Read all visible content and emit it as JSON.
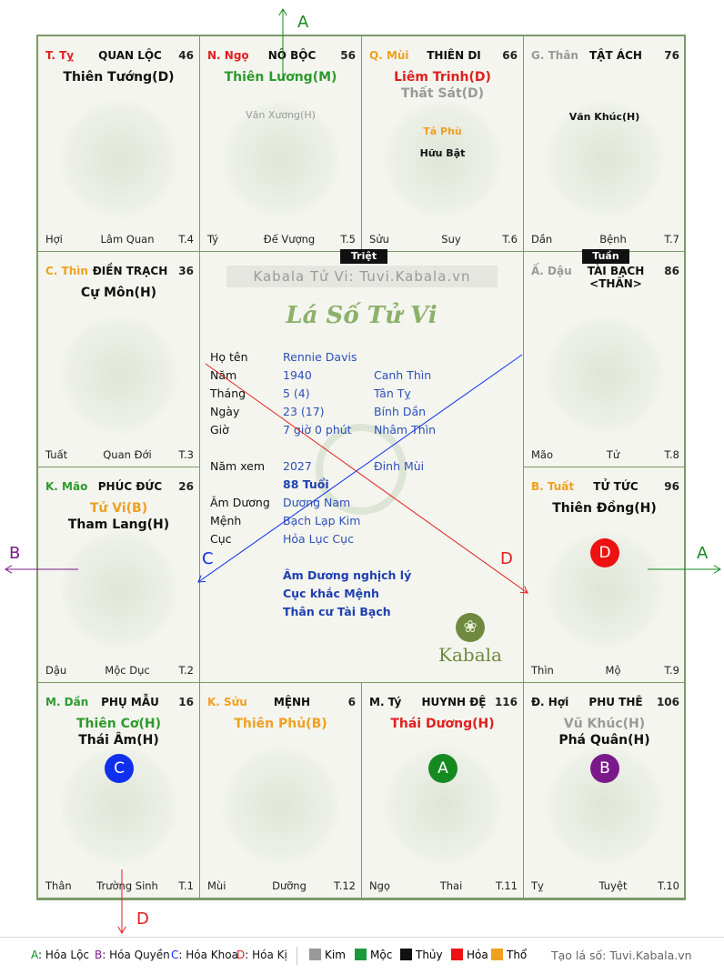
{
  "palaces": [
    {
      "can": "T. Tỵ",
      "can_color": "#e02020",
      "name": "QUAN LỘC",
      "num": "46",
      "main": [
        {
          "t": "Thiên Tướng(D)",
          "c": "#111111"
        }
      ],
      "minor": [],
      "ls": "Hợi",
      "tr": "Lâm Quan",
      "t": "T.4"
    },
    {
      "can": "N. Ngọ",
      "can_color": "#e02020",
      "name": "NÔ BỘC",
      "num": "56",
      "main": [
        {
          "t": "Thiên Lương(M)",
          "c": "#2e9a2e"
        }
      ],
      "minor": [
        {
          "t": "Văn Xương(H)",
          "c": "#9a9a9a",
          "b": false
        }
      ],
      "ls": "Tý",
      "tr": "Đế Vượng",
      "t": "T.5"
    },
    {
      "can": "Q. Mùi",
      "can_color": "#f0a020",
      "name": "THIÊN DI",
      "num": "66",
      "main": [
        {
          "t": "Liêm Trinh(D)",
          "c": "#e02020"
        },
        {
          "t": "Thất Sát(D)",
          "c": "#9a9a9a"
        }
      ],
      "minor": [
        {
          "t": "Tả Phù",
          "c": "#f0a020",
          "b": true
        },
        {
          "t": "Hữu Bật",
          "c": "#111111",
          "b": true
        }
      ],
      "ls": "Sửu",
      "tr": "Suy",
      "t": "T.6"
    },
    {
      "can": "G. Thân",
      "can_color": "#9a9a9a",
      "name": "TẬT ÁCH",
      "num": "76",
      "main": [],
      "minor": [
        {
          "t": "Văn Khúc(H)",
          "c": "#111111",
          "b": true
        }
      ],
      "ls": "Dần",
      "tr": "Bệnh",
      "t": "T.7"
    },
    {
      "can": "Ấ. Dậu",
      "can_color": "#9a9a9a",
      "name": "TÀI BẠCH <THÂN>",
      "num": "86",
      "main": [],
      "minor": [],
      "ls": "Mão",
      "tr": "Tử",
      "t": "T.8"
    },
    {
      "can": "B. Tuất",
      "can_color": "#f0a020",
      "name": "TỬ TỨC",
      "num": "96",
      "main": [
        {
          "t": "Thiên Đồng(H)",
          "c": "#111111"
        }
      ],
      "minor": [],
      "ls": "Thìn",
      "tr": "Mộ",
      "t": "T.9",
      "hoa": {
        "l": "D",
        "c": "#ee1111"
      }
    },
    {
      "can": "Đ. Hợi",
      "can_color": "#111111",
      "name": "PHU THÊ",
      "num": "106",
      "main": [
        {
          "t": "Vũ Khúc(H)",
          "c": "#9a9a9a"
        },
        {
          "t": "Phá Quân(H)",
          "c": "#111111"
        }
      ],
      "minor": [],
      "ls": "Tỵ",
      "tr": "Tuyệt",
      "t": "T.10",
      "hoa": {
        "l": "B",
        "c": "#7a1a8a"
      }
    },
    {
      "can": "M. Tý",
      "can_color": "#111111",
      "name": "HUYNH ĐỆ",
      "num": "116",
      "main": [
        {
          "t": "Thái Dương(H)",
          "c": "#e02020"
        }
      ],
      "minor": [],
      "ls": "Ngọ",
      "tr": "Thai",
      "t": "T.11",
      "hoa": {
        "l": "A",
        "c": "#158a20"
      }
    },
    {
      "can": "K. Sửu",
      "can_color": "#f0a020",
      "name": "MỆNH",
      "num": "6",
      "main": [
        {
          "t": "Thiên Phủ(B)",
          "c": "#f0a020"
        }
      ],
      "minor": [],
      "ls": "Mùi",
      "tr": "Dưỡng",
      "t": "T.12"
    },
    {
      "can": "M. Dần",
      "can_color": "#2e9a2e",
      "name": "PHỤ MẪU",
      "num": "16",
      "main": [
        {
          "t": "Thiên Cơ(H)",
          "c": "#2e9a2e"
        },
        {
          "t": "Thái Âm(H)",
          "c": "#111111"
        }
      ],
      "minor": [],
      "ls": "Thân",
      "tr": "Trường Sinh",
      "t": "T.1",
      "hoa": {
        "l": "C",
        "c": "#1030ee"
      }
    },
    {
      "can": "K. Mão",
      "can_color": "#2e9a2e",
      "name": "PHÚC ĐỨC",
      "num": "26",
      "main": [
        {
          "t": "Tử Vi(B)",
          "c": "#f0a020"
        },
        {
          "t": "Tham Lang(H)",
          "c": "#111111"
        }
      ],
      "minor": [],
      "ls": "Dậu",
      "tr": "Mộc Dục",
      "t": "T.2"
    },
    {
      "can": "C. Thìn",
      "can_color": "#f0a020",
      "name": "ĐIỀN TRẠCH",
      "num": "36",
      "main": [
        {
          "t": "Cự Môn(H)",
          "c": "#111111"
        }
      ],
      "minor": [],
      "ls": "Tuất",
      "tr": "Quan Đới",
      "t": "T.3"
    }
  ],
  "tags": {
    "triet": "Triệt",
    "tuan": "Tuần"
  },
  "center": {
    "site": "Kabala Tử Vi: Tuvi.Kabala.vn",
    "title": "Lá Số Tử Vi",
    "rows": [
      {
        "lab": "Họ tên",
        "v1": "Rennie Davis",
        "v2": ""
      },
      {
        "lab": "Năm",
        "v1": "1940",
        "v2": "Canh Thìn"
      },
      {
        "lab": "Tháng",
        "v1": "5  (4)",
        "v2": "Tân Tỵ"
      },
      {
        "lab": "Ngày",
        "v1": "23  (17)",
        "v2": "Bính Dần"
      },
      {
        "lab": "Giờ",
        "v1": "7 giờ 0 phút",
        "v2": "Nhâm Thìn"
      },
      {
        "lab": "Năm xem",
        "v1": "2027",
        "v2": "Đinh Mùi"
      },
      {
        "lab": "Âm Dương",
        "v1": "Dương Nam",
        "v2": ""
      },
      {
        "lab": "Mệnh",
        "v1": "Bạch Lạp Kim",
        "v2": ""
      },
      {
        "lab": "Cục",
        "v1": "Hỏa Lục Cục",
        "v2": ""
      }
    ],
    "age": "88 Tuổi",
    "notes": [
      "Âm Dương nghịch lý",
      "Cục khắc Mệnh",
      "Thân cư Tài Bạch"
    ],
    "brand": "Kabala"
  },
  "arrow_labels": {
    "top": "A",
    "right": "A",
    "left": "B",
    "bottom": "D",
    "mid_c": "C",
    "mid_d": "D"
  },
  "legend": {
    "hoa": [
      {
        "t": "A: Hóa Lộc",
        "c": "#158a20"
      },
      {
        "t": "B: Hóa Quyền",
        "c": "#7a1a8a"
      },
      {
        "t": "C: Hóa Khoa",
        "c": "#1030ee"
      },
      {
        "t": "D: Hóa Kị",
        "c": "#e02020"
      }
    ],
    "elements": [
      {
        "t": "Kim",
        "c": "#999999"
      },
      {
        "t": "Mộc",
        "c": "#1a9a3a"
      },
      {
        "t": "Thủy",
        "c": "#111111"
      },
      {
        "t": "Hỏa",
        "c": "#ee1111"
      },
      {
        "t": "Thổ",
        "c": "#f0a020"
      }
    ],
    "credit": "Tạo lá số: Tuvi.Kabala.vn"
  },
  "colors": {
    "border": "#7c9a68",
    "board_bg": "#f3f5ee",
    "info_blue": "#2f4fb8"
  }
}
